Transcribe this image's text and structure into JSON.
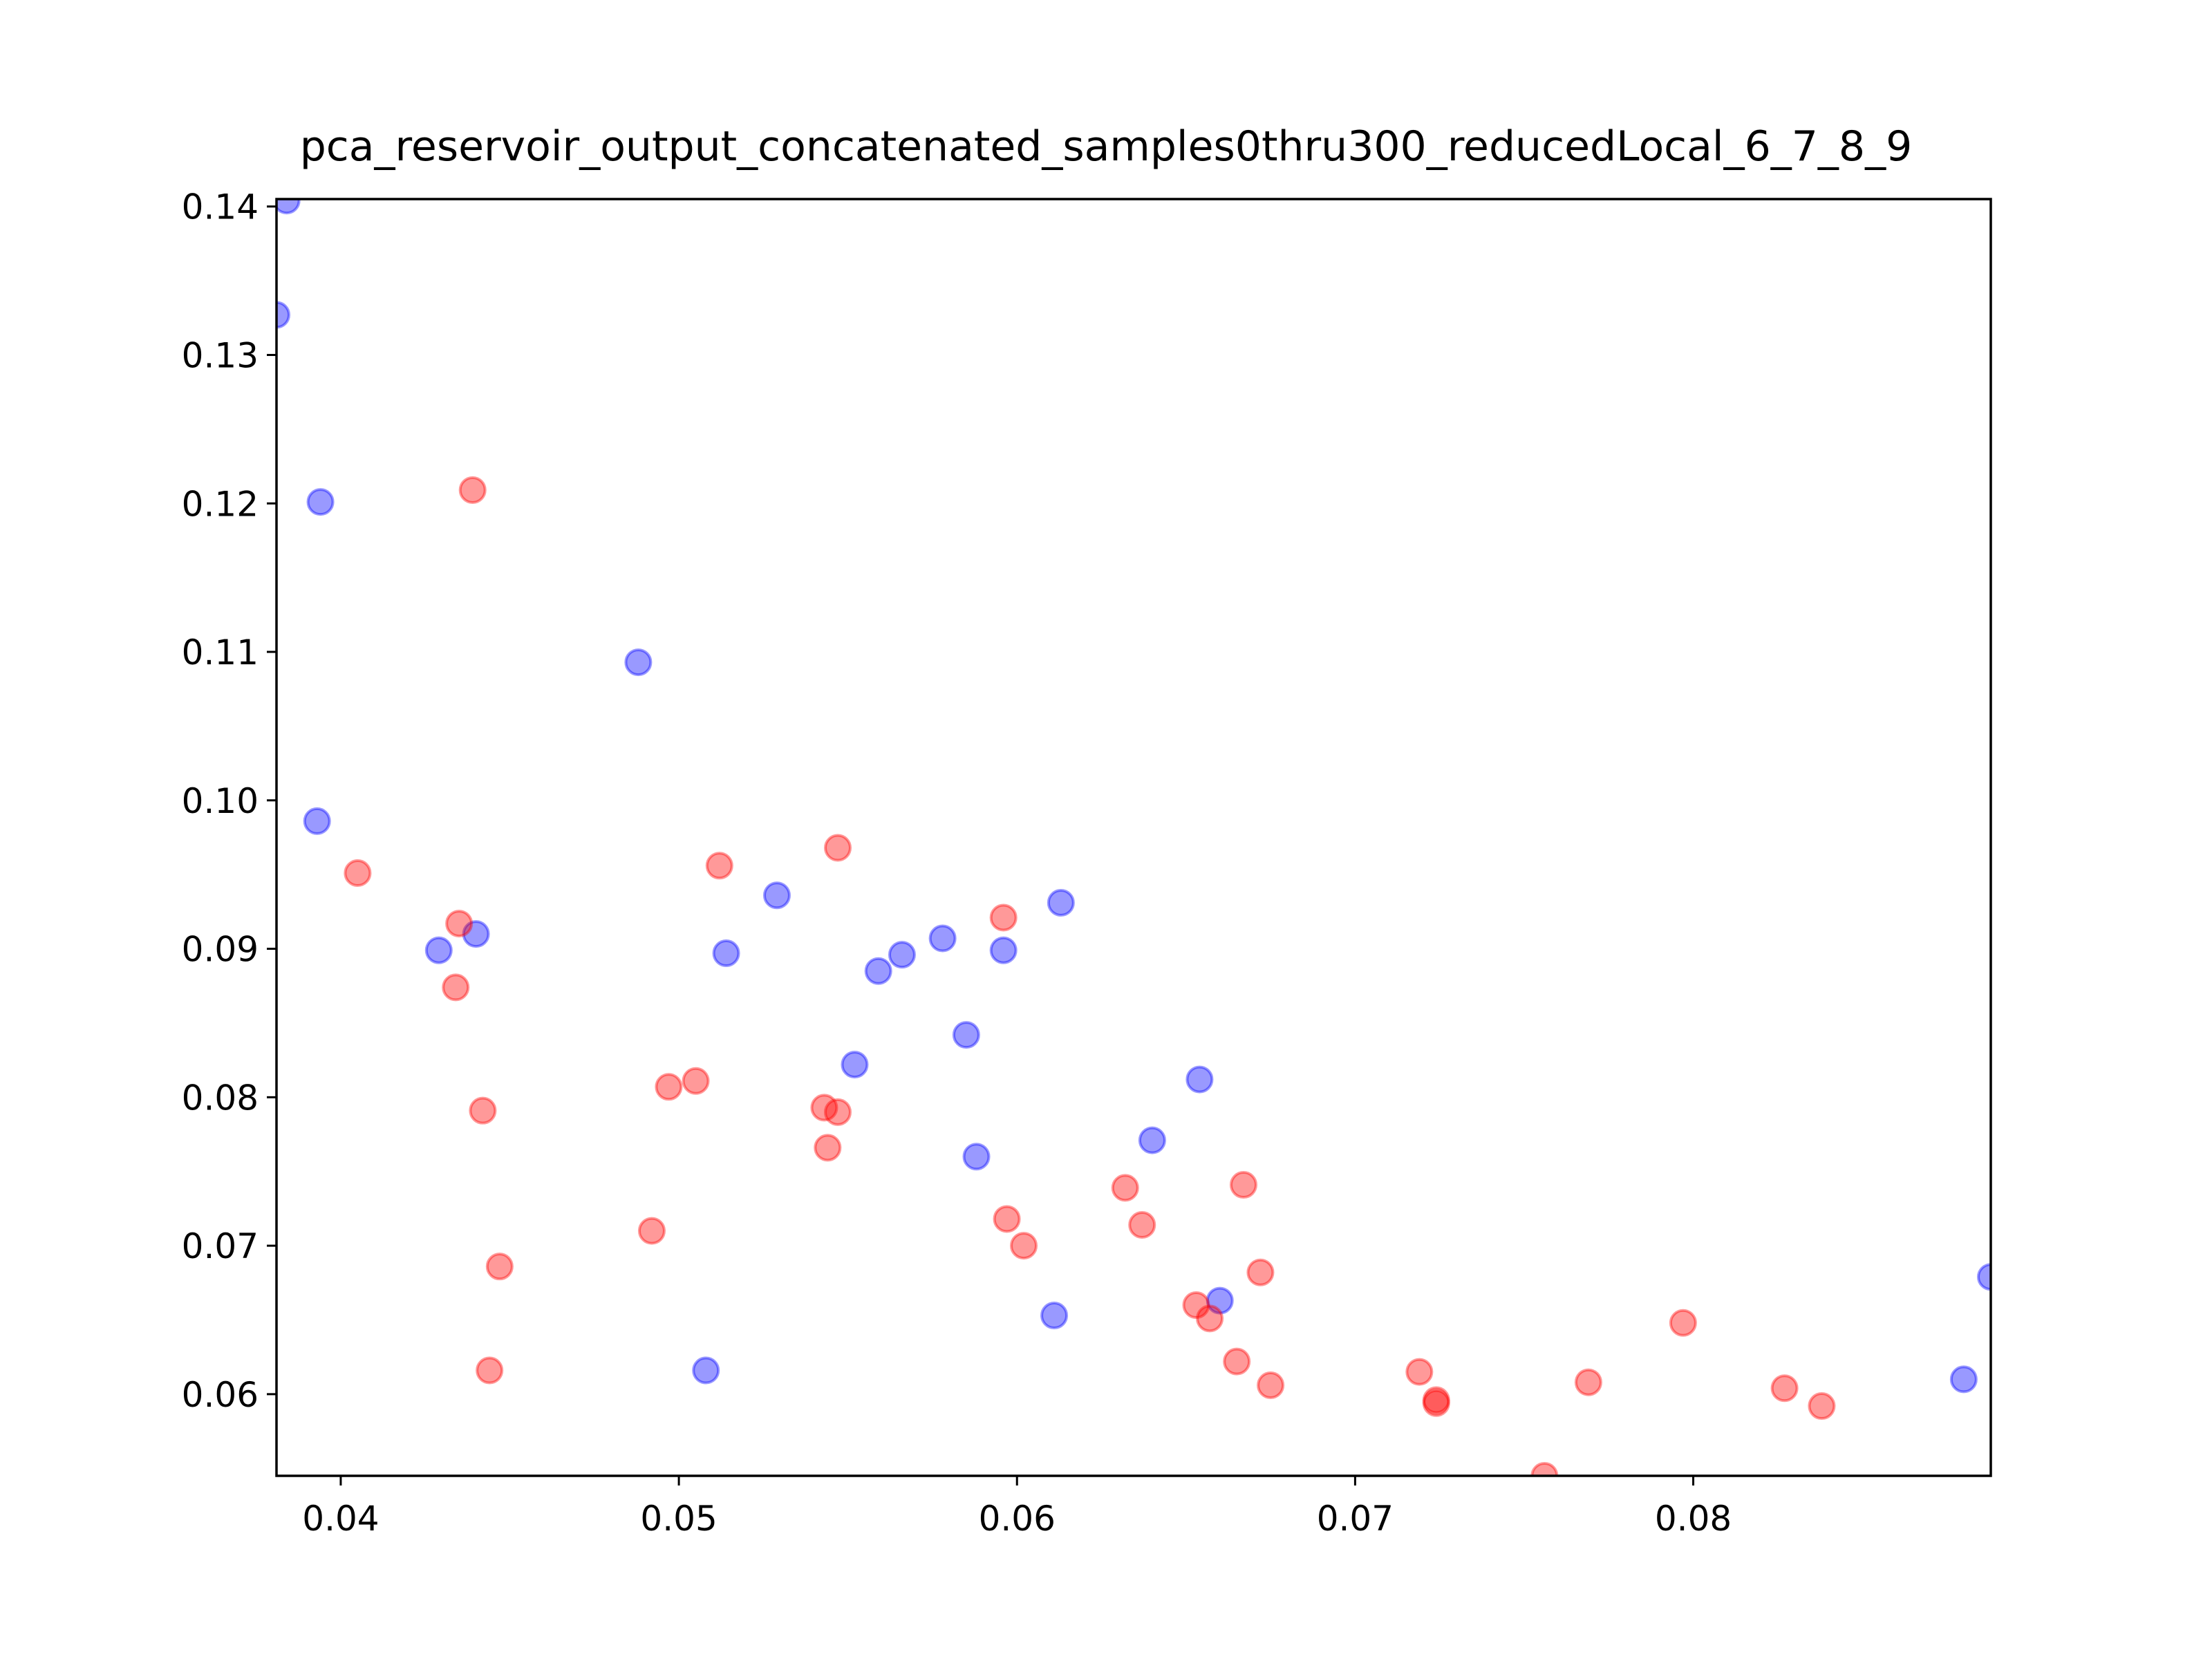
{
  "chart_data": {
    "type": "scatter",
    "title": "pca_reservoir_output_concatenated_samples0thru300_reducedLocal_6_7_8_9",
    "xlabel": "",
    "ylabel": "",
    "xlim": [
      0.0381,
      0.0888
    ],
    "ylim": [
      0.0545,
      0.1405
    ],
    "x_ticks": [
      "0.04",
      "0.05",
      "0.06",
      "0.07",
      "0.08"
    ],
    "y_ticks": [
      "0.06",
      "0.07",
      "0.08",
      "0.09",
      "0.10",
      "0.11",
      "0.12",
      "0.13",
      "0.14"
    ],
    "grid": false,
    "legend": "none",
    "series": [
      {
        "color": "#0000ff",
        "points": [
          [
            0.0384,
            0.1404
          ],
          [
            0.0381,
            0.1327
          ],
          [
            0.0394,
            0.1201
          ],
          [
            0.0488,
            0.1093
          ],
          [
            0.0393,
            0.0986
          ],
          [
            0.0429,
            0.0899
          ],
          [
            0.044,
            0.091
          ],
          [
            0.0514,
            0.0897
          ],
          [
            0.0529,
            0.0936
          ],
          [
            0.0559,
            0.0885
          ],
          [
            0.0566,
            0.0896
          ],
          [
            0.0578,
            0.0907
          ],
          [
            0.0596,
            0.0899
          ],
          [
            0.0613,
            0.0931
          ],
          [
            0.0585,
            0.0842
          ],
          [
            0.0552,
            0.0822
          ],
          [
            0.0654,
            0.0812
          ],
          [
            0.064,
            0.0771
          ],
          [
            0.0588,
            0.076
          ],
          [
            0.0611,
            0.0653
          ],
          [
            0.066,
            0.0663
          ],
          [
            0.0508,
            0.0616
          ],
          [
            0.0888,
            0.0679
          ],
          [
            0.088,
            0.061
          ]
        ]
      },
      {
        "color": "#ff0000",
        "points": [
          [
            0.0439,
            0.1209
          ],
          [
            0.0405,
            0.0951
          ],
          [
            0.0435,
            0.0917
          ],
          [
            0.0434,
            0.0874
          ],
          [
            0.0512,
            0.0956
          ],
          [
            0.0547,
            0.0968
          ],
          [
            0.0596,
            0.0921
          ],
          [
            0.0497,
            0.0807
          ],
          [
            0.0505,
            0.0811
          ],
          [
            0.0442,
            0.0791
          ],
          [
            0.0543,
            0.0793
          ],
          [
            0.0547,
            0.079
          ],
          [
            0.0544,
            0.0766
          ],
          [
            0.0492,
            0.071
          ],
          [
            0.0447,
            0.0686
          ],
          [
            0.0444,
            0.0616
          ],
          [
            0.0597,
            0.0718
          ],
          [
            0.0602,
            0.07
          ],
          [
            0.0632,
            0.0739
          ],
          [
            0.0637,
            0.0714
          ],
          [
            0.0667,
            0.0741
          ],
          [
            0.0672,
            0.0682
          ],
          [
            0.0653,
            0.066
          ],
          [
            0.0657,
            0.0651
          ],
          [
            0.0665,
            0.0622
          ],
          [
            0.0675,
            0.0606
          ],
          [
            0.0719,
            0.0615
          ],
          [
            0.0724,
            0.0596
          ],
          [
            0.0724,
            0.0594
          ],
          [
            0.0756,
            0.0545
          ],
          [
            0.0769,
            0.0608
          ],
          [
            0.0797,
            0.0648
          ],
          [
            0.0827,
            0.0604
          ],
          [
            0.0838,
            0.0592
          ]
        ]
      }
    ]
  }
}
